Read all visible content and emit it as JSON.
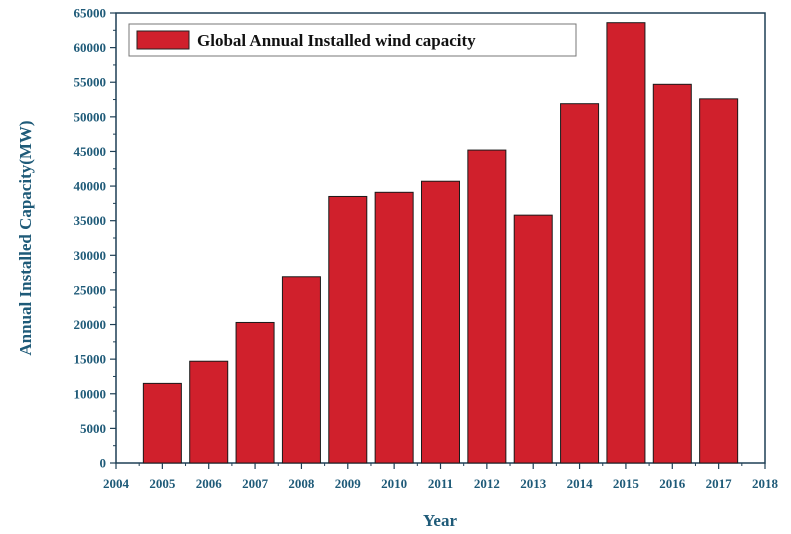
{
  "chart_data": {
    "type": "bar",
    "xlabel": "Year",
    "ylabel": "Annual Installed Capacity(MW)",
    "x_ticks": [
      "2004",
      "2005",
      "2006",
      "2007",
      "2008",
      "2009",
      "2010",
      "2011",
      "2012",
      "2013",
      "2014",
      "2015",
      "2016",
      "2017",
      "2018"
    ],
    "xlim": [
      2004,
      2018
    ],
    "y_ticks": [
      "0",
      "5000",
      "10000",
      "15000",
      "20000",
      "25000",
      "30000",
      "35000",
      "40000",
      "45000",
      "50000",
      "55000",
      "60000",
      "65000"
    ],
    "ylim": [
      0,
      65000
    ],
    "grid": false,
    "legend_position": "top-left",
    "series": [
      {
        "name": "Global Annual Installed wind capacity",
        "color": "#d0202c",
        "x": [
          2005,
          2006,
          2007,
          2008,
          2009,
          2010,
          2011,
          2012,
          2013,
          2014,
          2015,
          2016,
          2017
        ],
        "values": [
          11500,
          14700,
          20300,
          26900,
          38500,
          39100,
          40700,
          45200,
          35800,
          51900,
          63600,
          54700,
          52600
        ]
      }
    ]
  }
}
